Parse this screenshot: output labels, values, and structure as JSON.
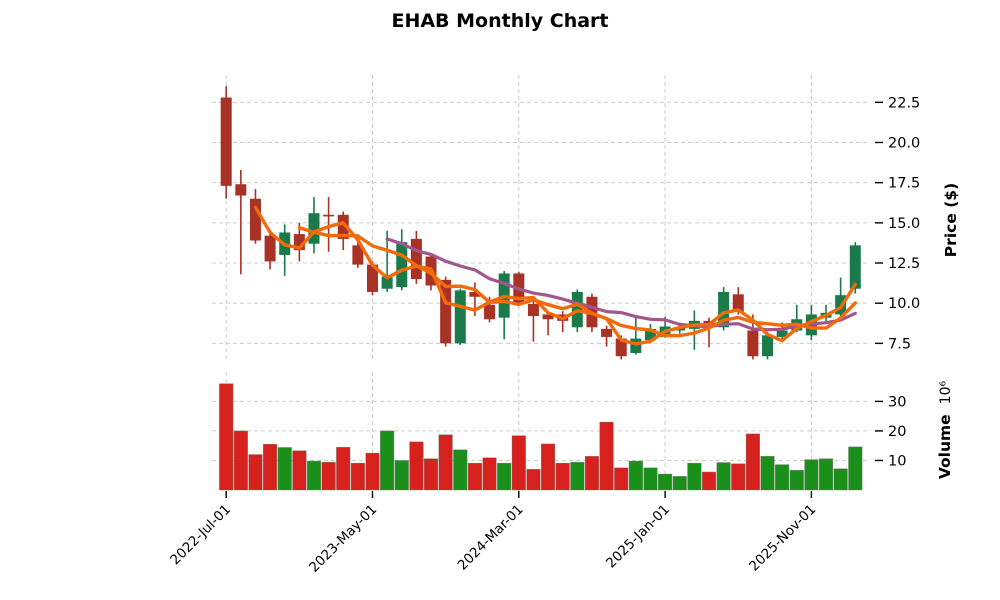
{
  "title": "EHAB Monthly Chart",
  "price_axis": {
    "label": "Price ($)",
    "ticks": [
      "22.5",
      "20.0",
      "17.5",
      "15.0",
      "12.5",
      "10.0",
      "7.5"
    ],
    "tick_values": [
      22.5,
      20.0,
      17.5,
      15.0,
      12.5,
      10.0,
      7.5
    ]
  },
  "volume_axis": {
    "label": "Volume",
    "unit": "10⁶",
    "ticks": [
      "30",
      "20",
      "10"
    ],
    "tick_values": [
      30,
      20,
      10
    ]
  },
  "x_axis": {
    "ticks": [
      {
        "index": 0,
        "label": "2022-Jul-01"
      },
      {
        "index": 10,
        "label": "2023-May-01"
      },
      {
        "index": 20,
        "label": "2024-Mar-01"
      },
      {
        "index": 30,
        "label": "2025-Jan-01"
      },
      {
        "index": 40,
        "label": "2025-Nov-01"
      }
    ]
  },
  "style": {
    "candle_up": "#1a7a4a",
    "candle_down": "#a93226",
    "volume_up": "#1a8f1a",
    "volume_down": "#d7211d",
    "ma_fast": "#f26a0a",
    "ma_mid": "#f26a0a",
    "ma_slow": "#a2568c",
    "grid": "#cccccc",
    "text": "#000000",
    "background": "#ffffff"
  },
  "chart_data": {
    "type": "candlestick",
    "symbol": "EHAB",
    "interval": "monthly",
    "title": "EHAB Monthly Chart",
    "ylabel": "Price ($)",
    "ylabel_lower": "Volume 10⁶",
    "price_ylim": [
      6.3,
      24.2
    ],
    "volume_ylim_millions": [
      0,
      40
    ],
    "grid": "dashed",
    "x": [
      "2022-07-01",
      "2022-08-01",
      "2022-09-01",
      "2022-10-01",
      "2022-11-01",
      "2022-12-01",
      "2023-01-01",
      "2023-02-01",
      "2023-03-01",
      "2023-04-01",
      "2023-05-01",
      "2023-06-01",
      "2023-07-01",
      "2023-08-01",
      "2023-09-01",
      "2023-10-01",
      "2023-11-01",
      "2023-12-01",
      "2024-01-01",
      "2024-02-01",
      "2024-03-01",
      "2024-04-01",
      "2024-05-01",
      "2024-06-01",
      "2024-07-01",
      "2024-08-01",
      "2024-09-01",
      "2024-10-01",
      "2024-11-01",
      "2024-12-01",
      "2025-01-01",
      "2025-02-01",
      "2025-03-01",
      "2025-04-01",
      "2025-05-01",
      "2025-06-01",
      "2025-07-01",
      "2025-08-01",
      "2025-09-01",
      "2025-10-01",
      "2025-11-01",
      "2025-12-01",
      "2026-01-01",
      "2026-02-01"
    ],
    "ohlc": [
      [
        22.8,
        23.5,
        16.5,
        17.3
      ],
      [
        17.4,
        18.3,
        11.8,
        16.7
      ],
      [
        16.5,
        17.1,
        13.7,
        13.9
      ],
      [
        14.2,
        14.4,
        12.1,
        12.6
      ],
      [
        13.0,
        14.9,
        11.7,
        14.4
      ],
      [
        14.3,
        15.0,
        12.6,
        13.3
      ],
      [
        13.7,
        16.6,
        13.1,
        15.6
      ],
      [
        15.5,
        16.6,
        13.2,
        15.4
      ],
      [
        15.5,
        15.7,
        13.3,
        14.0
      ],
      [
        13.6,
        14.3,
        12.2,
        12.4
      ],
      [
        12.4,
        12.6,
        10.5,
        10.7
      ],
      [
        10.9,
        14.5,
        10.7,
        11.65
      ],
      [
        11.0,
        14.6,
        10.8,
        13.8
      ],
      [
        14.0,
        14.5,
        11.2,
        11.5
      ],
      [
        12.9,
        13.1,
        10.8,
        11.1
      ],
      [
        11.45,
        11.65,
        7.3,
        7.5
      ],
      [
        7.5,
        10.9,
        7.4,
        10.8
      ],
      [
        10.7,
        11.3,
        9.2,
        10.4
      ],
      [
        9.9,
        10.4,
        8.8,
        9.0
      ],
      [
        9.1,
        12.0,
        7.75,
        11.85
      ],
      [
        11.85,
        11.95,
        9.9,
        10.0
      ],
      [
        9.95,
        10.1,
        7.6,
        9.2
      ],
      [
        9.3,
        9.5,
        8.0,
        9.0
      ],
      [
        9.3,
        9.5,
        8.2,
        8.9
      ],
      [
        8.5,
        10.85,
        8.2,
        10.7
      ],
      [
        10.4,
        10.6,
        8.2,
        8.5
      ],
      [
        8.4,
        8.6,
        7.3,
        7.9
      ],
      [
        7.8,
        8.0,
        6.5,
        6.7
      ],
      [
        6.9,
        9.25,
        6.8,
        7.8
      ],
      [
        7.7,
        8.7,
        7.5,
        8.4
      ],
      [
        7.9,
        9.15,
        7.85,
        8.55
      ],
      [
        8.3,
        8.8,
        8.1,
        8.5
      ],
      [
        8.4,
        9.55,
        7.1,
        8.9
      ],
      [
        8.9,
        9.1,
        7.25,
        8.6
      ],
      [
        8.5,
        11.0,
        8.3,
        10.7
      ],
      [
        10.55,
        11.0,
        9.3,
        9.45
      ],
      [
        8.3,
        9.3,
        6.5,
        6.7
      ],
      [
        6.7,
        8.2,
        6.5,
        8.0
      ],
      [
        7.9,
        8.8,
        7.7,
        8.3
      ],
      [
        8.3,
        9.9,
        8.2,
        9.0
      ],
      [
        8.0,
        9.9,
        7.7,
        9.3
      ],
      [
        9.1,
        9.9,
        8.8,
        9.4
      ],
      [
        9.3,
        11.6,
        9.1,
        10.5
      ],
      [
        10.9,
        13.8,
        10.6,
        13.6
      ]
    ],
    "volume_millions": [
      36,
      20,
      12,
      15.5,
      14.4,
      13.3,
      9.8,
      9.4,
      14.5,
      9.1,
      12.5,
      20,
      10,
      16.3,
      10.6,
      18.7,
      13.6,
      9.1,
      10.9,
      9.1,
      18.4,
      7.0,
      15.6,
      9.1,
      9.4,
      11.4,
      23,
      7.5,
      9.8,
      7.5,
      5.4,
      4.6,
      9.1,
      6.1,
      9.3,
      8.9,
      19,
      11.4,
      8.6,
      6.7,
      10.3,
      10.6,
      7.2,
      14.6
    ],
    "moving_averages": [
      {
        "name": "SMA-12",
        "period": 12,
        "color": "#a2568c",
        "width": 3.2
      },
      {
        "name": "SMA-6",
        "period": 6,
        "color": "#f26a0a",
        "width": 3.4
      },
      {
        "name": "SMA-3",
        "period": 3,
        "color": "#f26a0a",
        "width": 3.4
      }
    ]
  }
}
